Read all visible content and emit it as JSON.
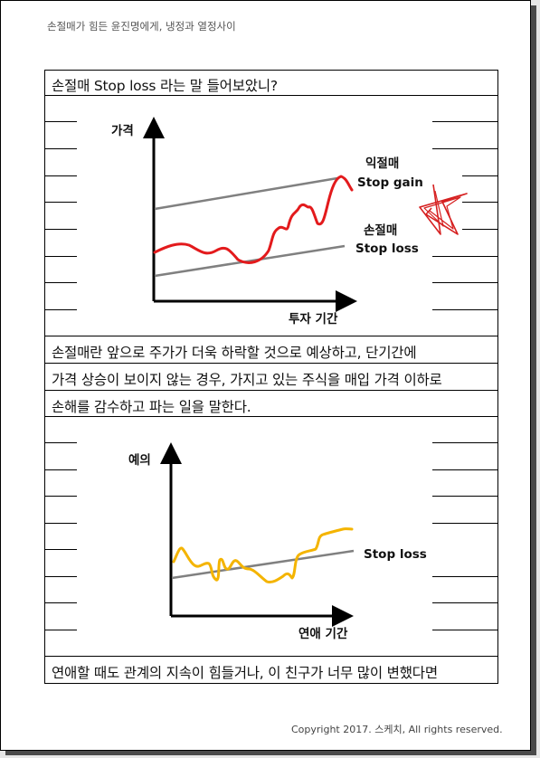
{
  "header_text": "손절매가 힘든 윤진명에게, 냉정과 열정사이",
  "title_line": "손절매 Stop loss 라는 말 들어보았니?",
  "chart1": {
    "y_axis_label": "가격",
    "x_axis_label": "투자 기간",
    "upper_line_label_ko": "익절매",
    "upper_line_label_en": "Stop gain",
    "lower_line_label_ko": "손절매",
    "lower_line_label_en": "Stop loss",
    "price_color": "#e31a1c",
    "line_color": "#808080",
    "star_color": "#d62020"
  },
  "body_lines": [
    "손절매란 앞으로 주가가 더욱 하락할 것으로 예상하고, 단기간에",
    "가격 상승이 보이지 않는 경우, 가지고 있는 주식을 매입 가격 이하로",
    "손해를 감수하고 파는 일을 말한다."
  ],
  "chart2": {
    "y_axis_label": "예의",
    "x_axis_label": "연애 기간",
    "line_label": "Stop loss",
    "curve_color": "#f4b400",
    "line_color": "#808080"
  },
  "closing_line": "연애할 때도 관계의 지속이 힘들거나, 이 친구가 너무 많이 변했다면",
  "footer_text": "Copyright 2017. 스케치, All rights reserved."
}
